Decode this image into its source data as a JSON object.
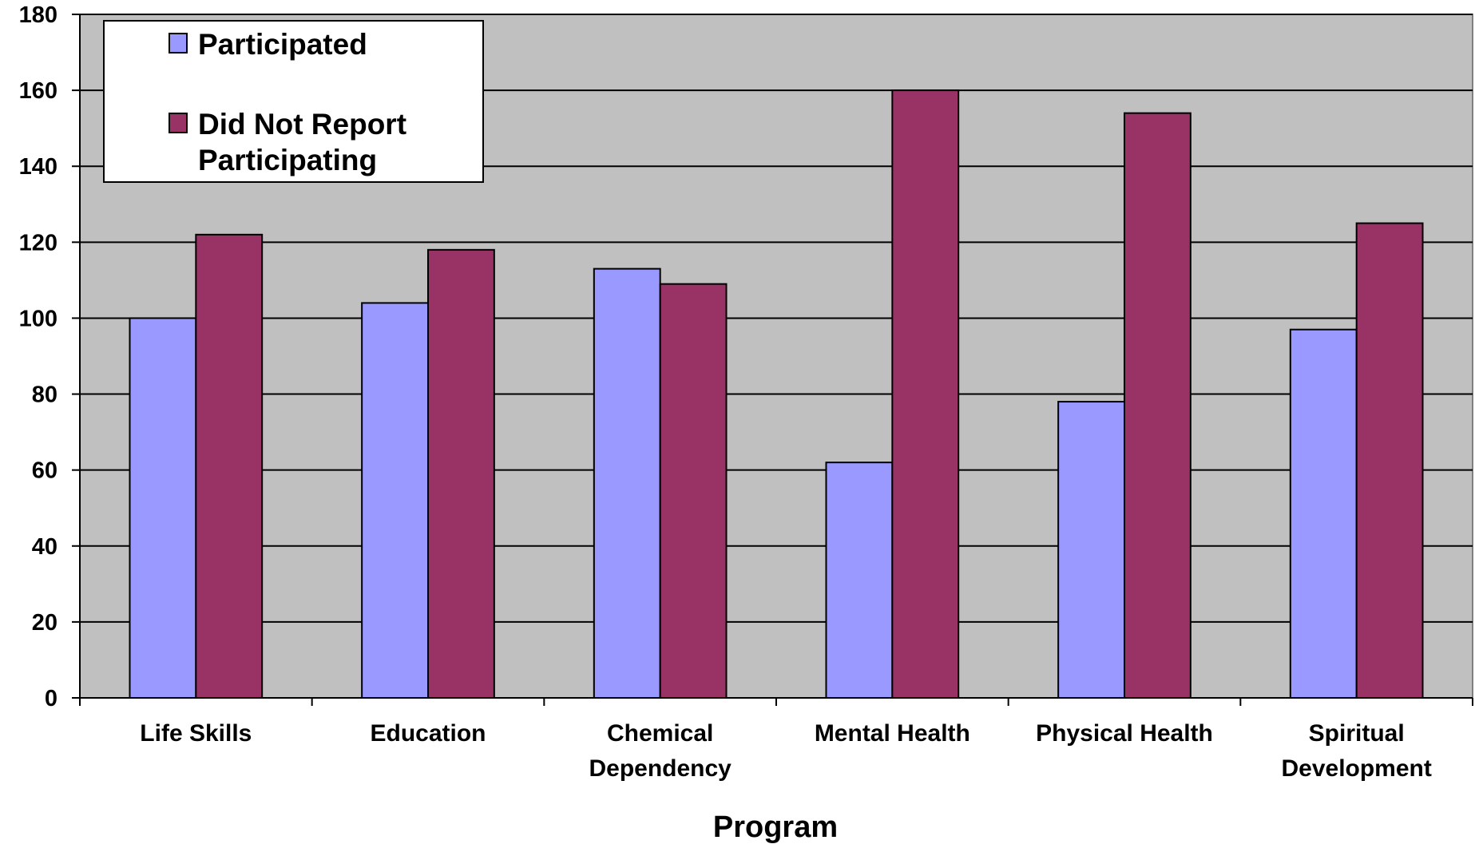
{
  "chart_data": {
    "type": "bar",
    "categories": [
      [
        "Life Skills"
      ],
      [
        "Education"
      ],
      [
        "Chemical",
        "Dependency"
      ],
      [
        "Mental Health"
      ],
      [
        "Physical Health"
      ],
      [
        "Spiritual",
        "Development"
      ]
    ],
    "series": [
      {
        "name": "Participated",
        "color": "#9999ff",
        "values": [
          100,
          104,
          113,
          62,
          78,
          97
        ]
      },
      {
        "name": "Did Not Report Participating",
        "legend_lines": [
          "Did Not Report",
          "Participating"
        ],
        "color": "#993366",
        "values": [
          122,
          118,
          109,
          160,
          154,
          125
        ]
      }
    ],
    "xlabel": "Program",
    "ylabel": "",
    "ylim": [
      0,
      180
    ],
    "yticks": [
      0,
      20,
      40,
      60,
      80,
      100,
      120,
      140,
      160,
      180
    ],
    "grid": true,
    "plot_background": "#c0c0c0",
    "legend_position": "top-left"
  }
}
